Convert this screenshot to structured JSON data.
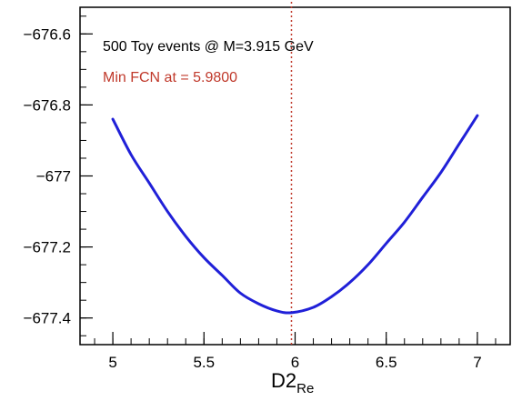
{
  "chart_data": {
    "type": "line",
    "title": "",
    "xlabel": "D2",
    "xlabel_subscript": "Re",
    "ylabel": "",
    "xlim": [
      4.82,
      7.18
    ],
    "ylim": [
      -677.475,
      -676.525
    ],
    "grid": false,
    "x_ticks": [
      5,
      5.5,
      6,
      6.5,
      7
    ],
    "x_tick_labels": [
      "5",
      "5.5",
      "6",
      "6.5",
      "7"
    ],
    "y_ticks": [
      -676.6,
      -676.8,
      -677,
      -677.2,
      -677.4
    ],
    "y_tick_labels": [
      "−676.6",
      "−676.8",
      "−677",
      "−677.2",
      "−677.4"
    ],
    "annotations": {
      "line1": "500 Toy events @ M=3.915 GeV",
      "line2": "Min FCN at = 5.9800",
      "line1_color": "#000000",
      "line2_color": "#c0392b"
    },
    "minimum_marker": {
      "x": 5.98,
      "style": "dotted",
      "color": "#c0392b"
    },
    "series": [
      {
        "color": "#2020d8",
        "x": [
          5.0,
          5.1,
          5.2,
          5.3,
          5.4,
          5.5,
          5.6,
          5.7,
          5.8,
          5.9,
          5.98,
          6.1,
          6.2,
          6.3,
          6.4,
          6.5,
          6.6,
          6.7,
          6.8,
          6.9,
          7.0
        ],
        "y": [
          -676.84,
          -676.94,
          -677.02,
          -677.1,
          -677.17,
          -677.23,
          -677.28,
          -677.33,
          -677.36,
          -677.38,
          -677.385,
          -677.37,
          -677.34,
          -677.3,
          -677.25,
          -677.19,
          -677.13,
          -677.06,
          -676.99,
          -676.91,
          -676.83
        ]
      }
    ]
  }
}
